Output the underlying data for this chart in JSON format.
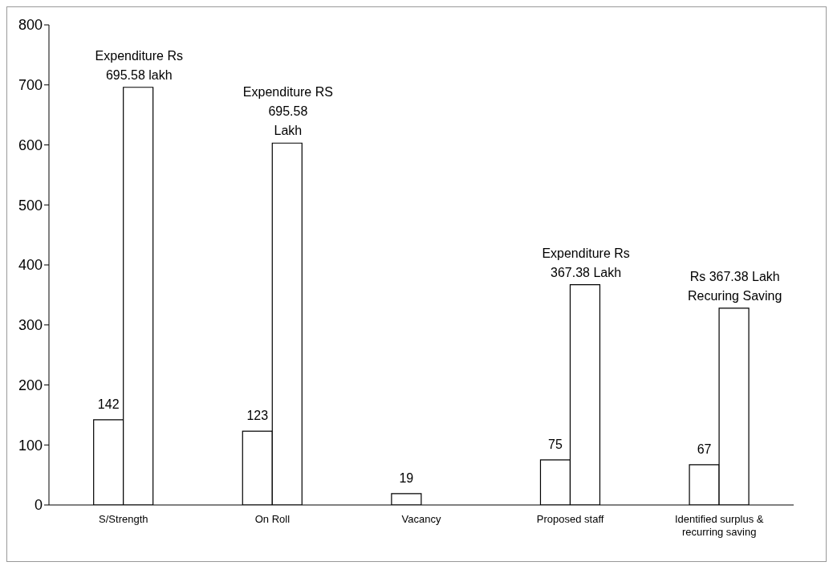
{
  "chart_data": {
    "type": "bar",
    "categories": [
      "S/Strength",
      "On Roll",
      "Vacancy",
      "Proposed staff",
      "Identified surplus & recurring saving"
    ],
    "series": [
      {
        "color": "#ffffff",
        "values": [
          142,
          123,
          19,
          75,
          67
        ],
        "value_labels": [
          "142",
          "123",
          "19",
          "75",
          "67"
        ]
      },
      {
        "color": "#ffffff",
        "values": [
          696,
          603,
          null,
          367,
          328
        ]
      }
    ],
    "ylim": [
      0,
      800
    ],
    "yticks": [
      0,
      100,
      200,
      300,
      400,
      500,
      600,
      700,
      800
    ],
    "grid": false,
    "legend": false,
    "annotations": [
      {
        "text": "Expenditure  Rs\n695.58 lakh",
        "x": "S/Strength",
        "y": 696
      },
      {
        "text": "Expenditure RS\n695.58\nLakh",
        "x": "On Roll",
        "y": 603
      },
      {
        "text": "Expenditure Rs\n367.38 Lakh",
        "x": "Proposed staff",
        "y": 367
      },
      {
        "text": "Rs 367.38 Lakh\nRecuring Saving",
        "x": "Identified surplus & recurring saving",
        "y": 328
      }
    ]
  }
}
